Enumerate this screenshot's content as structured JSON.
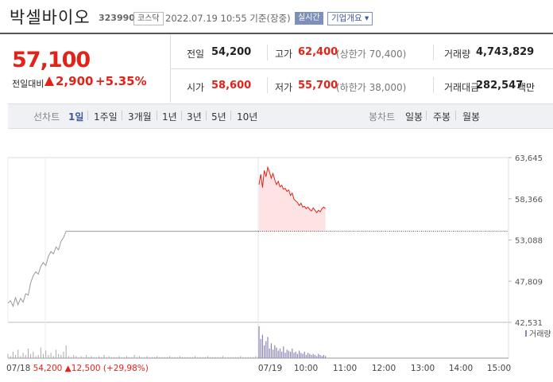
{
  "header": {
    "stock_name": "박셀바이오",
    "stock_code": "323990",
    "market": "코스닥",
    "timestamp": "2022.07.19 10:55 기준(장중)",
    "realtime_label": "실시간",
    "company_info_label": "기업개요 ▾"
  },
  "price": {
    "current": "57,100",
    "change_label": "전일대비",
    "change_amount": "2,900",
    "change_rate": "+5.35%",
    "direction": "up",
    "color_up": "#e2231a"
  },
  "stats": {
    "prev_close_label": "전일",
    "prev_close": "54,200",
    "high_label": "고가",
    "high": "62,400",
    "upper_limit": "(상한가 70,400)",
    "volume_label": "거래량",
    "volume": "4,743,829",
    "open_label": "시가",
    "open": "58,600",
    "low_label": "저가",
    "low": "55,700",
    "lower_limit": "(하한가 38,000)",
    "amount_label": "거래대금",
    "amount": "282,547",
    "amount_unit": "백만"
  },
  "period_tabs": {
    "line_label": "선차트",
    "line_items": [
      "1일",
      "1주일",
      "3개월",
      "1년",
      "3년",
      "5년",
      "10년"
    ],
    "active": "1일",
    "candle_label": "봉차트",
    "candle_items": [
      "일봉",
      "주봉",
      "월봉"
    ]
  },
  "chart_data": {
    "type": "line",
    "y_ticks": [
      "63,645",
      "58,366",
      "53,088",
      "47,809",
      "42,531"
    ],
    "ylim": [
      42531,
      63645
    ],
    "x_ticks": [
      "07/19",
      "10:00",
      "11:00",
      "12:00",
      "13:00",
      "14:00",
      "15:00"
    ],
    "baseline": 54200,
    "volume_legend": "거래량",
    "prev_day": {
      "date": "07/18",
      "close": "54,200",
      "change": "12,500",
      "rate": "(+29,98%)",
      "values": [
        45000,
        45300,
        44600,
        45700,
        44800,
        45600,
        45100,
        46200,
        46000,
        47600,
        48500,
        49000,
        48700,
        49700,
        50200,
        49800,
        51000,
        51600,
        51300,
        52200,
        51800,
        52900,
        53400,
        54200,
        54200,
        54200,
        54200,
        54200,
        54200,
        54200,
        54200,
        54200,
        54200,
        54200,
        54200,
        54200,
        54200,
        54200,
        54200,
        54200,
        54200,
        54200,
        54200,
        54200,
        54200,
        54200,
        54200,
        54200,
        54200,
        54200,
        54200,
        54200,
        54200,
        54200,
        54200,
        54200,
        54200,
        54200,
        54200,
        54200,
        54200,
        54200,
        54200,
        54200,
        54200,
        54200,
        54200,
        54200,
        54200,
        54200,
        54200,
        54200,
        54200,
        54200,
        54200,
        54200,
        54200,
        54200,
        54200,
        54200,
        54200,
        54200,
        54200,
        54200,
        54200,
        54200,
        54200,
        54200,
        54200,
        54200,
        54200,
        54200,
        54200,
        54200,
        54200,
        54200,
        54200,
        54200,
        54200,
        54200
      ],
      "volumes": [
        4,
        2,
        6,
        3,
        8,
        2,
        5,
        3,
        9,
        4,
        6,
        2,
        3,
        10,
        4,
        7,
        3,
        5,
        2,
        8,
        4,
        3,
        6,
        12,
        2,
        1,
        3,
        2,
        1,
        2,
        1,
        3,
        1,
        2,
        1,
        1,
        2,
        1,
        3,
        1,
        2,
        1,
        1,
        1,
        2,
        1,
        1,
        2,
        1,
        1,
        3,
        1,
        2,
        1,
        1,
        2,
        1,
        1,
        1,
        2,
        1,
        1,
        1,
        1,
        2,
        1,
        1,
        1,
        2,
        1,
        1,
        1,
        1,
        1,
        2,
        1,
        1,
        1,
        1,
        2,
        1,
        1,
        1,
        1,
        1,
        2,
        1,
        1,
        1,
        1,
        1,
        1,
        2,
        1,
        1,
        1,
        1,
        1,
        2,
        1
      ]
    },
    "today": {
      "date": "07/19",
      "values": [
        60200,
        61500,
        59800,
        62000,
        61200,
        62400,
        61800,
        61000,
        61600,
        60800,
        60200,
        60600,
        59900,
        60100,
        59600,
        59700,
        59300,
        59500,
        58800,
        59100,
        58300,
        58100,
        57900,
        57500,
        57800,
        57300,
        57400,
        57100,
        57300,
        57000,
        56800,
        57200,
        56900,
        56600,
        56900,
        56700,
        57100,
        57300,
        57100
      ],
      "volumes": [
        30,
        18,
        22,
        12,
        16,
        20,
        9,
        14,
        8,
        12,
        10,
        7,
        9,
        6,
        11,
        5,
        8,
        7,
        6,
        9,
        5,
        6,
        4,
        7,
        5,
        4,
        6,
        3,
        5,
        4,
        3,
        4,
        3,
        2,
        4,
        3,
        2,
        3,
        2
      ]
    }
  }
}
